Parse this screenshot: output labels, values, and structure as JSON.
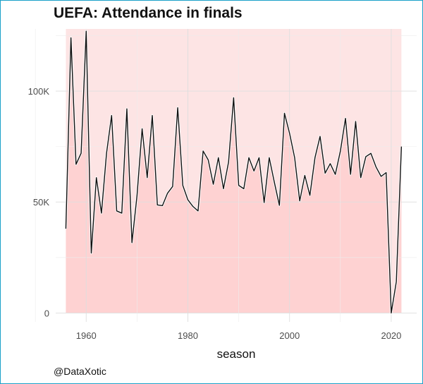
{
  "header": {
    "title": "UEFA: Attendance in finals"
  },
  "footer": {
    "caption": "@DataXotic"
  },
  "chart_data": {
    "type": "line",
    "title": "UEFA: Attendance in finals",
    "xlabel": "season",
    "ylabel": "",
    "xlim": [
      1954,
      2025
    ],
    "ylim": [
      -4000,
      128000
    ],
    "x_ticks": [
      1960,
      1980,
      2000,
      2020
    ],
    "y_ticks": [
      0,
      50000,
      100000
    ],
    "y_tick_labels": [
      "0",
      "50K",
      "100K"
    ],
    "grid": true,
    "background_band": {
      "from": 1956,
      "to": 2022,
      "max": 128000,
      "color_top": "#fde4e4",
      "color_fill": "#fed2d2"
    },
    "line_color": "#111111",
    "x": [
      1956,
      1957,
      1958,
      1959,
      1960,
      1961,
      1962,
      1963,
      1964,
      1965,
      1966,
      1967,
      1968,
      1969,
      1970,
      1971,
      1972,
      1973,
      1974,
      1975,
      1976,
      1977,
      1978,
      1979,
      1980,
      1981,
      1982,
      1983,
      1984,
      1985,
      1986,
      1987,
      1988,
      1989,
      1990,
      1991,
      1992,
      1993,
      1994,
      1995,
      1996,
      1997,
      1998,
      1999,
      2000,
      2001,
      2002,
      2003,
      2004,
      2005,
      2006,
      2007,
      2008,
      2009,
      2010,
      2011,
      2012,
      2013,
      2014,
      2015,
      2016,
      2017,
      2018,
      2019,
      2020,
      2021,
      2022
    ],
    "values": [
      38000,
      124000,
      67000,
      72000,
      127000,
      27000,
      61000,
      45000,
      72000,
      89000,
      46000,
      45000,
      92000,
      31700,
      53000,
      83000,
      61000,
      89000,
      48700,
      48400,
      54000,
      57000,
      92500,
      57500,
      51000,
      48000,
      46000,
      73000,
      69000,
      58000,
      70000,
      56000,
      68000,
      97000,
      57500,
      56000,
      70000,
      64000,
      70000,
      49730,
      70000,
      59000,
      48500,
      90000,
      81000,
      70000,
      50500,
      62000,
      53000,
      70000,
      79600,
      63000,
      67310,
      62467,
      73000,
      87700,
      62500,
      86298,
      60976,
      70442,
      71942,
      65842,
      61561,
      63272,
      0,
      14110,
      75000
    ]
  }
}
